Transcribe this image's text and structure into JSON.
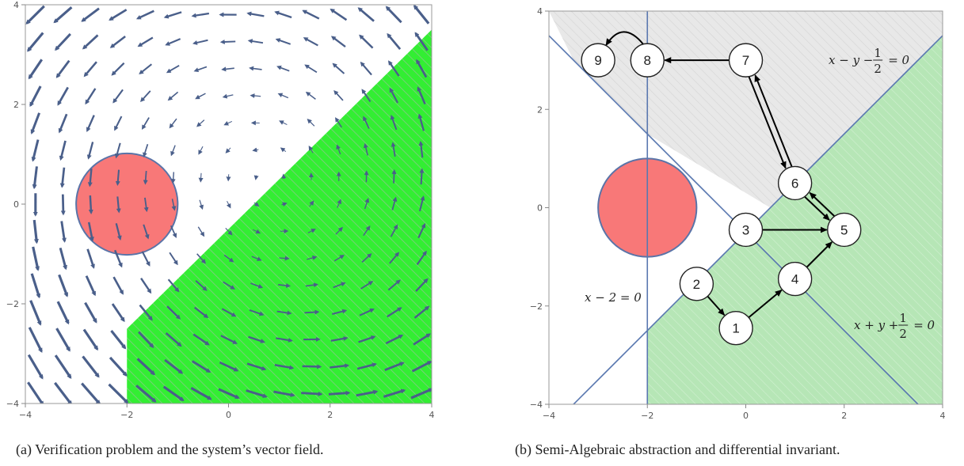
{
  "chart_data": [
    {
      "type": "vector-field",
      "caption": "(a) Verification problem and the system’s vector field.",
      "xlim": [
        -4,
        4
      ],
      "ylim": [
        -4,
        4
      ],
      "x_ticks": [
        "−4",
        "−2",
        "0",
        "2",
        "4"
      ],
      "y_ticks": [
        "−4",
        "−2",
        "0",
        "2",
        "4"
      ],
      "unsafe_region": {
        "shape": "disk",
        "center": [
          -2,
          0
        ],
        "radius": 1,
        "color": "#f87878"
      },
      "initial_region": {
        "vertices": [
          [
            -2,
            -2.5
          ],
          [
            4,
            3.5
          ],
          [
            4,
            -4
          ],
          [
            -2,
            -4
          ]
        ],
        "color": "#33ee33"
      },
      "arrow_color": "#4a5f8a"
    },
    {
      "type": "graph",
      "caption": "(b) Semi-Algebraic abstraction and differential invariant.",
      "xlim": [
        -4,
        4
      ],
      "ylim": [
        -4,
        4
      ],
      "x_ticks": [
        "−4",
        "−2",
        "0",
        "2",
        "4"
      ],
      "y_ticks": [
        "−4",
        "−2",
        "0",
        "2",
        "4"
      ],
      "unsafe_region": {
        "shape": "disk",
        "center": [
          -2,
          0
        ],
        "radius": 1,
        "color": "#f87878"
      },
      "lines": [
        {
          "label_lhs": "x − y −",
          "num": "1",
          "den": "2",
          "rhs": "= 0"
        },
        {
          "label_lhs": "x + y +",
          "num": "1",
          "den": "2",
          "rhs": "= 0"
        },
        {
          "label": "x − 2 = 0"
        }
      ],
      "nodes": [
        {
          "id": "1",
          "x": -0.2,
          "y": -2.45
        },
        {
          "id": "2",
          "x": -1.0,
          "y": -1.55
        },
        {
          "id": "3",
          "x": 0.0,
          "y": -0.45
        },
        {
          "id": "4",
          "x": 1.0,
          "y": -1.45
        },
        {
          "id": "5",
          "x": 2.0,
          "y": -0.45
        },
        {
          "id": "6",
          "x": 1.0,
          "y": 0.5
        },
        {
          "id": "7",
          "x": 0.0,
          "y": 3.0
        },
        {
          "id": "8",
          "x": -2.0,
          "y": 3.0
        },
        {
          "id": "9",
          "x": -3.0,
          "y": 3.0
        }
      ],
      "edges": [
        [
          "2",
          "1"
        ],
        [
          "1",
          "4"
        ],
        [
          "4",
          "5"
        ],
        [
          "3",
          "5"
        ],
        [
          "5",
          "6"
        ],
        [
          "6",
          "5"
        ],
        [
          "6",
          "7"
        ],
        [
          "7",
          "6"
        ],
        [
          "7",
          "8"
        ],
        [
          "8",
          "9"
        ]
      ]
    }
  ]
}
